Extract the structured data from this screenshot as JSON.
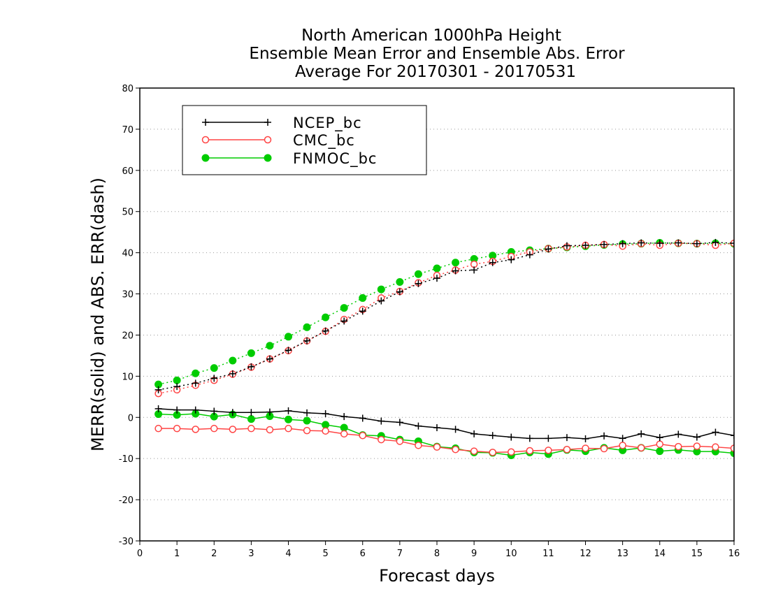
{
  "chart_data": {
    "type": "line",
    "title": [
      "North American 1000hPa Height",
      "Ensemble Mean Error and Ensemble Abs. Error",
      "Average For 20170301 - 20170531"
    ],
    "xlabel": "Forecast days",
    "ylabel": "MERR(solid) and ABS. ERR(dash)",
    "xlim": [
      0,
      16
    ],
    "ylim": [
      -30,
      80
    ],
    "xticks": [
      0,
      1,
      2,
      3,
      4,
      5,
      6,
      7,
      8,
      9,
      10,
      11,
      12,
      13,
      14,
      15,
      16
    ],
    "yticks": [
      -30,
      -20,
      -10,
      0,
      10,
      20,
      30,
      40,
      50,
      60,
      70,
      80
    ],
    "grid": "horizontal dotted",
    "legend_position": "top-left",
    "x": [
      0.5,
      1,
      1.5,
      2,
      2.5,
      3,
      3.5,
      4,
      4.5,
      5,
      5.5,
      6,
      6.5,
      7,
      7.5,
      8,
      8.5,
      9,
      9.5,
      10,
      10.5,
      11,
      11.5,
      12,
      12.5,
      13,
      13.5,
      14,
      14.5,
      15,
      15.5,
      16
    ],
    "series": [
      {
        "name": "NCEP_bc",
        "color": "#000000",
        "marker": "plus",
        "merr": [
          2.1,
          1.8,
          1.8,
          1.5,
          1.2,
          1.2,
          1.3,
          1.6,
          1.1,
          0.9,
          0.2,
          -0.2,
          -0.9,
          -1.2,
          -2.1,
          -2.5,
          -2.9,
          -4.0,
          -4.4,
          -4.8,
          -5.1,
          -5.1,
          -4.9,
          -5.2,
          -4.5,
          -5.1,
          -4.0,
          -4.9,
          -4.1,
          -4.8,
          -3.6,
          -4.4
        ],
        "abs_err": [
          6.7,
          7.5,
          8.3,
          9.5,
          10.6,
          12.3,
          14.2,
          16.3,
          18.6,
          21.0,
          23.4,
          25.8,
          28.3,
          30.5,
          32.5,
          33.8,
          35.6,
          35.8,
          37.6,
          38.3,
          39.5,
          40.9,
          41.7,
          41.8,
          42.0,
          42.2,
          42.4,
          42.3,
          42.4,
          42.2,
          42.5,
          42.3
        ]
      },
      {
        "name": "CMC_bc",
        "color": "#ff4444",
        "marker": "open-circle",
        "merr": [
          -2.7,
          -2.7,
          -2.9,
          -2.7,
          -2.9,
          -2.7,
          -3.0,
          -2.7,
          -3.2,
          -3.3,
          -4.0,
          -4.4,
          -5.4,
          -5.8,
          -6.8,
          -7.2,
          -7.8,
          -8.2,
          -8.5,
          -8.4,
          -8.1,
          -8.0,
          -7.8,
          -7.5,
          -7.6,
          -6.8,
          -7.4,
          -6.5,
          -7.1,
          -7.0,
          -7.2,
          -7.5
        ],
        "abs_err": [
          5.8,
          6.7,
          7.8,
          9.0,
          10.5,
          12.2,
          14.2,
          16.2,
          18.6,
          20.9,
          23.8,
          26.2,
          29.0,
          30.6,
          32.7,
          34.5,
          35.8,
          37.2,
          37.9,
          39.1,
          40.2,
          41.0,
          41.4,
          41.8,
          42.0,
          41.6,
          42.2,
          41.8,
          42.3,
          42.2,
          41.8,
          42.3
        ]
      },
      {
        "name": "FNMOC_bc",
        "color": "#00cc00",
        "marker": "filled-circle",
        "merr": [
          0.8,
          0.6,
          0.9,
          0.2,
          0.7,
          -0.4,
          0.3,
          -0.5,
          -0.8,
          -1.8,
          -2.5,
          -4.3,
          -4.5,
          -5.4,
          -5.8,
          -7.1,
          -7.5,
          -8.5,
          -8.6,
          -9.2,
          -8.5,
          -8.9,
          -7.9,
          -8.2,
          -7.4,
          -8.0,
          -7.4,
          -8.2,
          -7.9,
          -8.3,
          -8.3,
          -8.7
        ],
        "abs_err": [
          8.0,
          9.0,
          10.7,
          12.0,
          13.8,
          15.6,
          17.4,
          19.6,
          21.9,
          24.3,
          26.6,
          29.0,
          31.1,
          32.9,
          34.8,
          36.2,
          37.6,
          38.5,
          39.3,
          40.2,
          40.6,
          41.0,
          41.3,
          41.6,
          41.9,
          42.1,
          42.2,
          42.4,
          42.3,
          42.2,
          42.3,
          42.2
        ]
      }
    ]
  }
}
